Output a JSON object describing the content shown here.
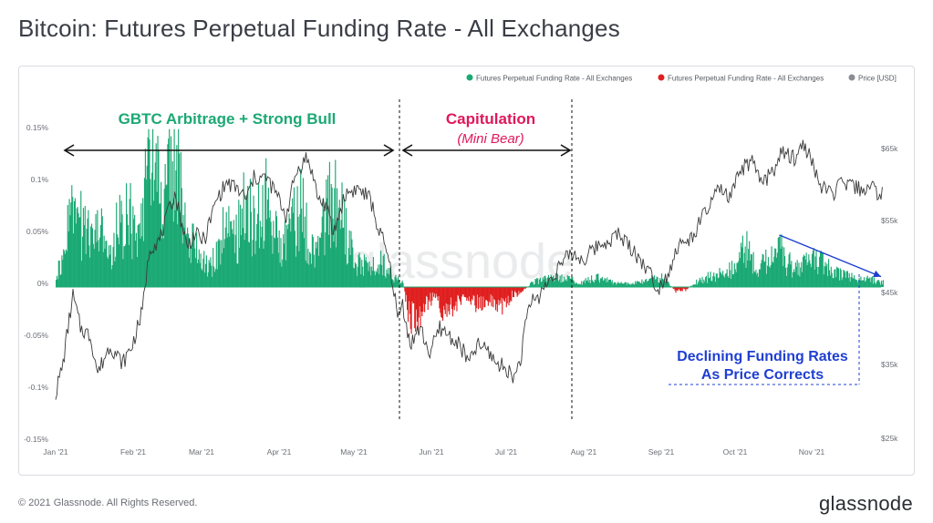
{
  "page": {
    "title": "Bitcoin: Futures Perpetual Funding Rate - All Exchanges",
    "copyright": "© 2021 Glassnode. All Rights Reserved.",
    "brand": "glassnode",
    "watermark": "glassnode"
  },
  "colors": {
    "positive": "#1ba974",
    "negative": "#e01f1f",
    "price": "#3a3a3a",
    "annotation_green": "#1ba974",
    "annotation_pink": "#e0185a",
    "annotation_blue": "#1f3fd1",
    "axis_text": "#6b6e75"
  },
  "chart_data": {
    "type": "bar",
    "title": "Bitcoin: Futures Perpetual Funding Rate - All Exchanges",
    "legend_position": "top-right",
    "grid": false,
    "series": [
      {
        "name": "Futures Perpetual Funding Rate - All Exchanges",
        "color": "#1ba974",
        "role": "positive"
      },
      {
        "name": "Futures Perpetual Funding Rate - All Exchanges",
        "color": "#e01f1f",
        "role": "negative"
      },
      {
        "name": "Price [USD]",
        "color": "#3a3a3a",
        "role": "price"
      }
    ],
    "x_ticks": [
      "Jan '21",
      "Feb '21",
      "Mar '21",
      "Apr '21",
      "May '21",
      "Jun '21",
      "Jul '21",
      "Aug '21",
      "Sep '21",
      "Oct '21",
      "Nov '21"
    ],
    "y_left": {
      "ticks": [
        "0.15%",
        "0.1%",
        "0.05%",
        "0%",
        "-0.05%",
        "-0.1%",
        "-0.15%"
      ],
      "ylim": [
        -0.15,
        0.15
      ]
    },
    "y_right": {
      "ticks": [
        "$65k",
        "$55k",
        "$45k",
        "$35k",
        "$25k"
      ],
      "ylim": [
        25000,
        70000
      ],
      "log": true
    },
    "funding_rate_anchors_pct": [
      [
        1,
        0.02
      ],
      [
        4,
        0.05
      ],
      [
        7,
        0.1
      ],
      [
        10,
        0.07
      ],
      [
        14,
        0.05
      ],
      [
        18,
        0.06
      ],
      [
        21,
        0.03
      ],
      [
        25,
        0.07
      ],
      [
        28,
        0.08
      ],
      [
        32,
        0.07
      ],
      [
        36,
        0.1
      ],
      [
        39,
        0.14
      ],
      [
        42,
        0.1
      ],
      [
        45,
        0.12
      ],
      [
        48,
        0.15
      ],
      [
        52,
        0.07
      ],
      [
        55,
        0.05
      ],
      [
        59,
        0.03
      ],
      [
        62,
        0.02
      ],
      [
        65,
        0.04
      ],
      [
        69,
        0.07
      ],
      [
        73,
        0.06
      ],
      [
        76,
        0.09
      ],
      [
        80,
        0.07
      ],
      [
        84,
        0.1
      ],
      [
        88,
        0.06
      ],
      [
        91,
        0.04
      ],
      [
        95,
        0.07
      ],
      [
        99,
        0.09
      ],
      [
        102,
        0.05
      ],
      [
        105,
        0.03
      ],
      [
        108,
        0.07
      ],
      [
        112,
        0.11
      ],
      [
        115,
        0.08
      ],
      [
        118,
        0.05
      ],
      [
        121,
        0.02
      ],
      [
        124,
        0.03
      ],
      [
        127,
        0.02
      ],
      [
        131,
        0.03
      ],
      [
        134,
        0.02
      ],
      [
        137,
        0.01
      ],
      [
        140,
        0.005
      ],
      [
        142,
        -0.03
      ],
      [
        145,
        -0.04
      ],
      [
        149,
        -0.02
      ],
      [
        153,
        -0.01
      ],
      [
        157,
        -0.03
      ],
      [
        161,
        -0.02
      ],
      [
        166,
        -0.01
      ],
      [
        170,
        -0.02
      ],
      [
        175,
        -0.015
      ],
      [
        180,
        -0.02
      ],
      [
        184,
        -0.01
      ],
      [
        188,
        -0.005
      ],
      [
        192,
        0.005
      ],
      [
        198,
        0.01
      ],
      [
        205,
        0.01
      ],
      [
        212,
        0.005
      ],
      [
        218,
        0.01
      ],
      [
        225,
        0.005
      ],
      [
        232,
        0.003
      ],
      [
        238,
        0.008
      ],
      [
        245,
        0.01
      ],
      [
        250,
        -0.005
      ],
      [
        254,
        -0.003
      ],
      [
        258,
        0.005
      ],
      [
        262,
        0.01
      ],
      [
        268,
        0.015
      ],
      [
        274,
        0.02
      ],
      [
        278,
        0.05
      ],
      [
        282,
        0.02
      ],
      [
        287,
        0.03
      ],
      [
        292,
        0.04
      ],
      [
        296,
        0.025
      ],
      [
        300,
        0.02
      ],
      [
        305,
        0.03
      ],
      [
        310,
        0.025
      ],
      [
        315,
        0.015
      ],
      [
        322,
        0.01
      ],
      [
        329,
        0.008
      ],
      [
        333,
        0.005
      ]
    ],
    "price_anchors_usd": [
      [
        0,
        29000
      ],
      [
        3,
        32000
      ],
      [
        7,
        40000
      ],
      [
        10,
        36000
      ],
      [
        14,
        35000
      ],
      [
        17,
        31000
      ],
      [
        22,
        34000
      ],
      [
        27,
        32000
      ],
      [
        31,
        34000
      ],
      [
        35,
        38000
      ],
      [
        38,
        47000
      ],
      [
        42,
        48000
      ],
      [
        45,
        52000
      ],
      [
        48,
        56000
      ],
      [
        53,
        47000
      ],
      [
        56,
        49000
      ],
      [
        60,
        48000
      ],
      [
        65,
        55000
      ],
      [
        69,
        58000
      ],
      [
        73,
        57000
      ],
      [
        77,
        55000
      ],
      [
        80,
        59000
      ],
      [
        85,
        59000
      ],
      [
        89,
        56000
      ],
      [
        93,
        52000
      ],
      [
        97,
        60000
      ],
      [
        101,
        63000
      ],
      [
        103,
        61000
      ],
      [
        106,
        55000
      ],
      [
        109,
        54000
      ],
      [
        112,
        49000
      ],
      [
        117,
        56000
      ],
      [
        122,
        57000
      ],
      [
        127,
        55000
      ],
      [
        130,
        50000
      ],
      [
        133,
        47000
      ],
      [
        136,
        42000
      ],
      [
        138,
        37000
      ],
      [
        140,
        39000
      ],
      [
        143,
        34000
      ],
      [
        147,
        36000
      ],
      [
        151,
        33000
      ],
      [
        155,
        36000
      ],
      [
        159,
        35000
      ],
      [
        163,
        34000
      ],
      [
        167,
        32000
      ],
      [
        170,
        34000
      ],
      [
        174,
        33500
      ],
      [
        178,
        32000
      ],
      [
        182,
        31500
      ],
      [
        185,
        30500
      ],
      [
        188,
        33000
      ],
      [
        191,
        39000
      ],
      [
        195,
        40000
      ],
      [
        199,
        42000
      ],
      [
        203,
        44000
      ],
      [
        208,
        46000
      ],
      [
        213,
        45000
      ],
      [
        218,
        47000
      ],
      [
        223,
        48000
      ],
      [
        227,
        49000
      ],
      [
        232,
        47000
      ],
      [
        236,
        45000
      ],
      [
        240,
        43000
      ],
      [
        243,
        41000
      ],
      [
        247,
        43000
      ],
      [
        251,
        47000
      ],
      [
        256,
        48000
      ],
      [
        260,
        51000
      ],
      [
        264,
        54000
      ],
      [
        268,
        57000
      ],
      [
        272,
        55000
      ],
      [
        277,
        61000
      ],
      [
        281,
        62000
      ],
      [
        285,
        58000
      ],
      [
        289,
        60000
      ],
      [
        293,
        64000
      ],
      [
        298,
        63000
      ],
      [
        302,
        66000
      ],
      [
        306,
        61000
      ],
      [
        309,
        57000
      ],
      [
        313,
        56000
      ],
      [
        318,
        58000
      ],
      [
        323,
        57000
      ],
      [
        329,
        57000
      ],
      [
        333,
        56000
      ]
    ],
    "days_total": 334,
    "phases": [
      {
        "label": "GBTC Arbitrage + Strong Bull",
        "start_day": 0,
        "end_day": 138
      },
      {
        "label": "Capitulation",
        "sublabel": "(Mini Bear)",
        "start_day": 138,
        "end_day": 206
      }
    ],
    "annotation": {
      "label_line1": "Declining Funding Rates",
      "label_line2": "As Price Corrects",
      "trend_from": [
        292,
        0.05
      ],
      "trend_to": [
        333,
        0.01
      ]
    }
  }
}
